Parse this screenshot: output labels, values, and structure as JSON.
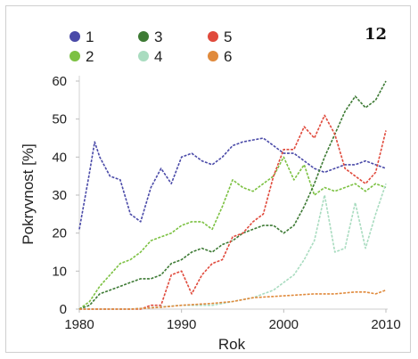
{
  "chart_data": {
    "type": "line",
    "panel_label": "12",
    "xlabel": "Rok",
    "ylabel": "Pokryvnost [%]",
    "xlim": [
      1980,
      2010
    ],
    "ylim": [
      0,
      60
    ],
    "xticks": [
      1980,
      1990,
      2000,
      2010
    ],
    "yticks": [
      0,
      10,
      20,
      30,
      40,
      50,
      60
    ],
    "legend_position": "top-left",
    "series": [
      {
        "name": "1",
        "color": "#4a4aa8",
        "points": [
          [
            1980,
            21
          ],
          [
            1981,
            36
          ],
          [
            1981.5,
            44
          ],
          [
            1982,
            40
          ],
          [
            1983,
            35
          ],
          [
            1984,
            34
          ],
          [
            1985,
            25
          ],
          [
            1986,
            23
          ],
          [
            1987,
            32
          ],
          [
            1988,
            37
          ],
          [
            1989,
            33
          ],
          [
            1990,
            40
          ],
          [
            1991,
            41
          ],
          [
            1992,
            39
          ],
          [
            1993,
            38
          ],
          [
            1994,
            40
          ],
          [
            1995,
            43
          ],
          [
            1996,
            44
          ],
          [
            1997,
            44.5
          ],
          [
            1998,
            45
          ],
          [
            1999,
            43
          ],
          [
            2000,
            41
          ],
          [
            2001,
            41
          ],
          [
            2002,
            39
          ],
          [
            2003,
            37
          ],
          [
            2004,
            36
          ],
          [
            2005,
            37
          ],
          [
            2006,
            38
          ],
          [
            2007,
            38
          ],
          [
            2008,
            39
          ],
          [
            2009,
            38
          ],
          [
            2010,
            37
          ]
        ]
      },
      {
        "name": "2",
        "color": "#7cc142",
        "points": [
          [
            1980,
            0
          ],
          [
            1981,
            2
          ],
          [
            1982,
            6
          ],
          [
            1983,
            9
          ],
          [
            1984,
            12
          ],
          [
            1985,
            13
          ],
          [
            1986,
            15
          ],
          [
            1987,
            18
          ],
          [
            1988,
            19
          ],
          [
            1989,
            20
          ],
          [
            1990,
            22
          ],
          [
            1991,
            23
          ],
          [
            1992,
            23
          ],
          [
            1993,
            21
          ],
          [
            1994,
            27
          ],
          [
            1995,
            34
          ],
          [
            1996,
            32
          ],
          [
            1997,
            31
          ],
          [
            1998,
            33
          ],
          [
            1999,
            35
          ],
          [
            2000,
            40
          ],
          [
            2001,
            34
          ],
          [
            2002,
            38
          ],
          [
            2003,
            30
          ],
          [
            2004,
            32
          ],
          [
            2005,
            31
          ],
          [
            2006,
            32
          ],
          [
            2007,
            33
          ],
          [
            2008,
            31
          ],
          [
            2009,
            33
          ],
          [
            2010,
            32
          ]
        ]
      },
      {
        "name": "3",
        "color": "#3d7a34",
        "points": [
          [
            1980,
            0
          ],
          [
            1981,
            1
          ],
          [
            1982,
            4
          ],
          [
            1983,
            5
          ],
          [
            1984,
            6
          ],
          [
            1985,
            7
          ],
          [
            1986,
            8
          ],
          [
            1987,
            8
          ],
          [
            1988,
            9
          ],
          [
            1989,
            12
          ],
          [
            1990,
            13
          ],
          [
            1991,
            15
          ],
          [
            1992,
            16
          ],
          [
            1993,
            15
          ],
          [
            1994,
            17
          ],
          [
            1995,
            18
          ],
          [
            1996,
            20
          ],
          [
            1997,
            21
          ],
          [
            1998,
            22
          ],
          [
            1999,
            22
          ],
          [
            2000,
            20
          ],
          [
            2001,
            22
          ],
          [
            2002,
            27
          ],
          [
            2003,
            33
          ],
          [
            2004,
            40
          ],
          [
            2005,
            46
          ],
          [
            2006,
            52
          ],
          [
            2007,
            56
          ],
          [
            2008,
            53
          ],
          [
            2009,
            55
          ],
          [
            2010,
            60
          ]
        ]
      },
      {
        "name": "4",
        "color": "#a9dcc0",
        "points": [
          [
            1980,
            0
          ],
          [
            1985,
            0
          ],
          [
            1990,
            1
          ],
          [
            1993,
            1
          ],
          [
            1995,
            2
          ],
          [
            1997,
            3
          ],
          [
            1998,
            4
          ],
          [
            1999,
            5
          ],
          [
            2000,
            7
          ],
          [
            2001,
            9
          ],
          [
            2002,
            13
          ],
          [
            2003,
            18
          ],
          [
            2004,
            30
          ],
          [
            2005,
            15
          ],
          [
            2006,
            16
          ],
          [
            2007,
            28
          ],
          [
            2008,
            16
          ],
          [
            2009,
            25
          ],
          [
            2010,
            33
          ]
        ]
      },
      {
        "name": "5",
        "color": "#e04a3c",
        "points": [
          [
            1980,
            0
          ],
          [
            1986,
            0
          ],
          [
            1987,
            1
          ],
          [
            1988,
            1
          ],
          [
            1989,
            9
          ],
          [
            1990,
            10
          ],
          [
            1991,
            4
          ],
          [
            1992,
            9
          ],
          [
            1993,
            12
          ],
          [
            1994,
            13
          ],
          [
            1995,
            19
          ],
          [
            1996,
            20
          ],
          [
            1997,
            23
          ],
          [
            1998,
            25
          ],
          [
            1999,
            35
          ],
          [
            2000,
            42
          ],
          [
            2001,
            42
          ],
          [
            2002,
            48
          ],
          [
            2003,
            45
          ],
          [
            2004,
            51
          ],
          [
            2005,
            46
          ],
          [
            2006,
            37
          ],
          [
            2007,
            35
          ],
          [
            2008,
            33
          ],
          [
            2009,
            36
          ],
          [
            2010,
            47
          ]
        ]
      },
      {
        "name": "6",
        "color": "#e08a3c",
        "points": [
          [
            1980,
            0
          ],
          [
            1985,
            0
          ],
          [
            1988,
            0.5
          ],
          [
            1990,
            1
          ],
          [
            1993,
            1.5
          ],
          [
            1995,
            2
          ],
          [
            1997,
            3
          ],
          [
            2000,
            3.5
          ],
          [
            2003,
            4
          ],
          [
            2005,
            4
          ],
          [
            2007,
            4.5
          ],
          [
            2008,
            4.5
          ],
          [
            2009,
            4
          ],
          [
            2010,
            5
          ]
        ]
      }
    ]
  }
}
